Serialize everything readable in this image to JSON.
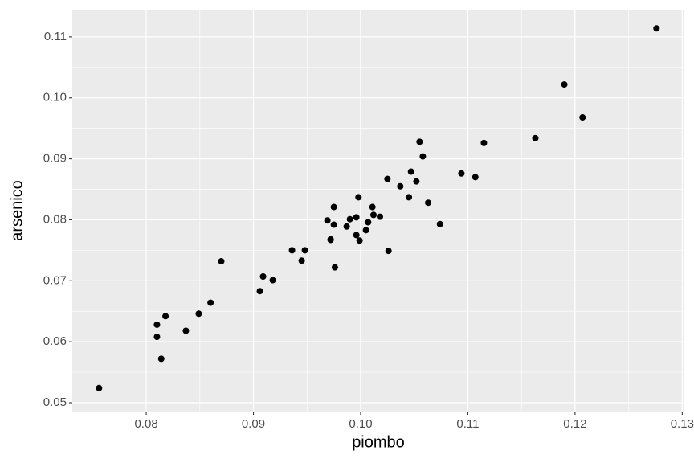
{
  "chart_data": {
    "type": "scatter",
    "x_label": "piombo",
    "y_label": "arsenico",
    "color": "#000000",
    "grid": true,
    "minor_grid": true,
    "panel_color": "#ebebeb",
    "xlim": [
      0.0731,
      0.1302
    ],
    "ylim": [
      0.04855,
      0.11447
    ],
    "xticks": [
      0.08,
      0.09,
      {
        "value": 0.1,
        "label": "0.10"
      },
      0.11,
      0.12,
      0.13
    ],
    "yticks": [
      0.05,
      0.06,
      0.07,
      0.08,
      0.09,
      {
        "value": 0.1,
        "label": "0.10"
      },
      0.11
    ],
    "x": [
      0.0756,
      0.081,
      0.081,
      0.0814,
      0.0818,
      0.0837,
      0.0849,
      0.086,
      0.087,
      0.0906,
      0.0909,
      0.0918,
      0.0936,
      0.0945,
      0.0948,
      0.0969,
      0.0972,
      0.0972,
      0.0975,
      0.0975,
      0.0976,
      0.0987,
      0.099,
      0.0996,
      0.0996,
      0.0998,
      0.0999,
      0.1005,
      0.1007,
      0.1011,
      0.1012,
      0.1018,
      0.1025,
      0.1026,
      0.1037,
      0.1045,
      0.1047,
      0.1052,
      0.1055,
      0.1058,
      0.1063,
      0.1074,
      0.1094,
      0.1107,
      0.1115,
      0.1163,
      0.119,
      0.1207,
      0.1276
    ],
    "values": [
      0.0524,
      0.0628,
      0.0608,
      0.0572,
      0.0642,
      0.0618,
      0.0646,
      0.0664,
      0.0732,
      0.0683,
      0.0707,
      0.0701,
      0.075,
      0.0733,
      0.075,
      0.0799,
      0.0768,
      0.0767,
      0.0821,
      0.0792,
      0.0722,
      0.0789,
      0.0801,
      0.0804,
      0.0775,
      0.0837,
      0.0766,
      0.0783,
      0.0796,
      0.0821,
      0.0808,
      0.0805,
      0.0867,
      0.0749,
      0.0855,
      0.0837,
      0.0879,
      0.0863,
      0.0928,
      0.0904,
      0.0828,
      0.0793,
      0.0876,
      0.087,
      0.0926,
      0.0934,
      0.1022,
      0.0968,
      0.1114
    ]
  }
}
